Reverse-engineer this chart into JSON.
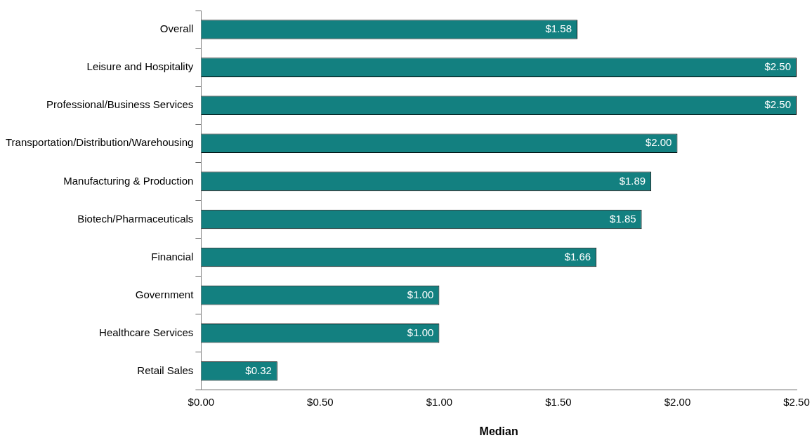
{
  "chart_data": {
    "type": "bar",
    "orientation": "horizontal",
    "xlabel": "Median",
    "categories": [
      "Overall",
      "Leisure and Hospitality",
      "Professional/Business Services",
      "Transportation/Distribution/Warehousing",
      "Manufacturing & Production",
      "Biotech/Pharmaceuticals",
      "Financial",
      "Government",
      "Healthcare Services",
      "Retail Sales"
    ],
    "values": [
      1.58,
      2.5,
      2.5,
      2.0,
      1.89,
      1.85,
      1.66,
      1.0,
      1.0,
      0.32
    ],
    "value_labels": [
      "$1.58",
      "$2.50",
      "$2.50",
      "$2.00",
      "$1.89",
      "$1.85",
      "$1.66",
      "$1.00",
      "$1.00",
      "$0.32"
    ],
    "color": "#138080",
    "xlim": [
      0,
      2.5
    ],
    "xticks": [
      {
        "value": 0,
        "label": "$0.00"
      },
      {
        "value": 0.5,
        "label": "$0.50"
      },
      {
        "value": 1,
        "label": "$1.00"
      },
      {
        "value": 1.5,
        "label": "$1.50"
      },
      {
        "value": 2,
        "label": "$2.00"
      },
      {
        "value": 2.5,
        "label": "$2.50"
      }
    ],
    "grid": false,
    "legend": false
  }
}
